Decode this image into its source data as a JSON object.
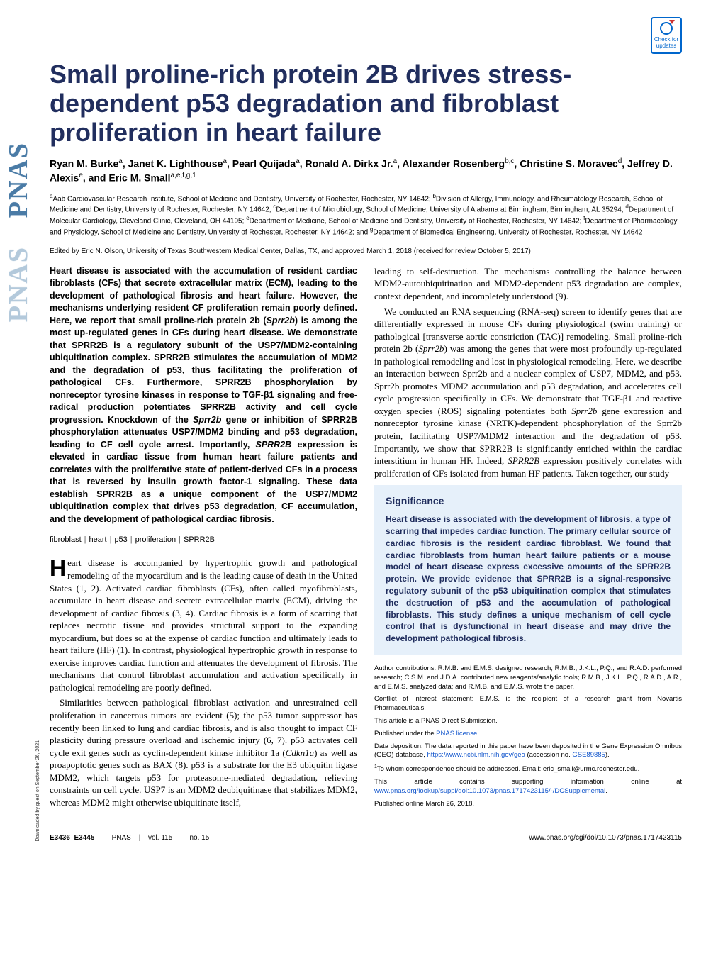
{
  "updates_badge": "Check for updates",
  "title": "Small proline-rich protein 2B drives stress-dependent p53 degradation and fibroblast proliferation in heart failure",
  "authors_html": "Ryan M. Burke<sup>a</sup>, Janet K. Lighthouse<sup>a</sup>, Pearl Quijada<sup>a</sup>, Ronald A. Dirkx Jr.<sup>a</sup>, Alexander Rosenberg<sup>b,c</sup>, Christine S. Moravec<sup>d</sup>, Jeffrey D. Alexis<sup>e</sup>, and Eric M. Small<sup>a,e,f,g,1</sup>",
  "affiliations_html": "<sup>a</sup>Aab Cardiovascular Research Institute, School of Medicine and Dentistry, University of Rochester, Rochester, NY 14642; <sup>b</sup>Division of Allergy, Immunology, and Rheumatology Research, School of Medicine and Dentistry, University of Rochester, Rochester, NY 14642; <sup>c</sup>Department of Microbiology, School of Medicine, University of Alabama at Birmingham, Birmingham, AL 35294; <sup>d</sup>Department of Molecular Cardiology, Cleveland Clinic, Cleveland, OH 44195; <sup>e</sup>Department of Medicine, School of Medicine and Dentistry, University of Rochester, Rochester, NY 14642; <sup>f</sup>Department of Pharmacology and Physiology, School of Medicine and Dentistry, University of Rochester, Rochester, NY 14642; and <sup>g</sup>Department of Biomedical Engineering, University of Rochester, Rochester, NY 14642",
  "edited": "Edited by Eric N. Olson, University of Texas Southwestern Medical Center, Dallas, TX, and approved March 1, 2018 (received for review October 5, 2017)",
  "abstract_html": "Heart disease is associated with the accumulation of resident cardiac fibroblasts (CFs) that secrete extracellular matrix (ECM), leading to the development of pathological fibrosis and heart failure. However, the mechanisms underlying resident CF proliferation remain poorly defined. Here, we report that small proline-rich protein 2b (<em>Sprr2b</em>) is among the most up-regulated genes in CFs during heart disease. We demonstrate that SPRR2B is a regulatory subunit of the USP7/MDM2-containing ubiquitination complex. SPRR2B stimulates the accumulation of MDM2 and the degradation of p53, thus facilitating the proliferation of pathological CFs. Furthermore, SPRR2B phosphorylation by nonreceptor tyrosine kinases in response to TGF-β1 signaling and free-radical production potentiates SPRR2B activity and cell cycle progression. Knockdown of the <em>Sprr2b</em> gene or inhibition of SPRR2B phosphorylation attenuates USP7/MDM2 binding and p53 degradation, leading to CF cell cycle arrest. Importantly, <em>SPRR2B</em> expression is elevated in cardiac tissue from human heart failure patients and correlates with the proliferative state of patient-derived CFs in a process that is reversed by insulin growth factor-1 signaling. These data establish SPRR2B as a unique component of the USP7/MDM2 ubiquitination complex that drives p53 degradation, CF accumulation, and the development of pathological cardiac fibrosis.",
  "keywords": [
    "fibroblast",
    "heart",
    "p53",
    "proliferation",
    "SPRR2B"
  ],
  "body_col1_p1_html": "eart disease is accompanied by hypertrophic growth and pathological remodeling of the myocardium and is the leading cause of death in the United States (1, 2). Activated cardiac fibroblasts (CFs), often called myofibroblasts, accumulate in heart disease and secrete extracellular matrix (ECM), driving the development of cardiac fibrosis (3, 4). Cardiac fibrosis is a form of scarring that replaces necrotic tissue and provides structural support to the expanding myocardium, but does so at the expense of cardiac function and ultimately leads to heart failure (HF) (1). In contrast, physiological hypertrophic growth in response to exercise improves cardiac function and attenuates the development of fibrosis. The mechanisms that control fibroblast accumulation and activation specifically in pathological remodeling are poorly defined.",
  "body_col1_p2_html": "Similarities between pathological fibroblast activation and unrestrained cell proliferation in cancerous tumors are evident (5); the p53 tumor suppressor has recently been linked to lung and cardiac fibrosis, and is also thought to impact CF plasticity during pressure overload and ischemic injury (6, 7). p53 activates cell cycle exit genes such as cyclin-dependent kinase inhibitor 1a (<em>Cdkn1a</em>) as well as proapoptotic genes such as BAX (8). p53 is a substrate for the E3 ubiquitin ligase MDM2, which targets p53 for proteasome-mediated degradation, relieving constraints on cell cycle. USP7 is an MDM2 deubiquitinase that stabilizes MDM2, whereas MDM2 might otherwise ubiquitinate itself,",
  "body_col2_p1_html": "leading to self-destruction. The mechanisms controlling the balance between MDM2-autoubiquitination and MDM2-dependent p53 degradation are complex, context dependent, and incompletely understood (9).",
  "body_col2_p2_html": "We conducted an RNA sequencing (RNA-seq) screen to identify genes that are differentially expressed in mouse CFs during physiological (swim training) or pathological [transverse aortic constriction (TAC)] remodeling. Small proline-rich protein 2b (<em>Sprr2b</em>) was among the genes that were most profoundly up-regulated in pathological remodeling and lost in physiological remodeling. Here, we describe an interaction between Sprr2b and a nuclear complex of USP7, MDM2, and p53. Sprr2b promotes MDM2 accumulation and p53 degradation, and accelerates cell cycle progression specifically in CFs. We demonstrate that TGF-β1 and reactive oxygen species (ROS) signaling potentiates both <em>Sprr2b</em> gene expression and nonreceptor tyrosine kinase (NRTK)-dependent phosphorylation of the Sprr2b protein, facilitating USP7/MDM2 interaction and the degradation of p53. Importantly, we show that SPRR2B is significantly enriched within the cardiac interstitium in human HF. Indeed, <em>SPRR2B</em> expression positively correlates with proliferation of CFs isolated from human HF patients. Taken together, our study",
  "significance": {
    "title": "Significance",
    "text": "Heart disease is associated with the development of fibrosis, a type of scarring that impedes cardiac function. The primary cellular source of cardiac fibrosis is the resident cardiac fibroblast. We found that cardiac fibroblasts from human heart failure patients or a mouse model of heart disease express excessive amounts of the SPRR2B protein. We provide evidence that SPRR2B is a signal-responsive regulatory subunit of the p53 ubiquitination complex that stimulates the destruction of p53 and the accumulation of pathological fibroblasts. This study defines a unique mechanism of cell cycle control that is dysfunctional in heart disease and may drive the development pathological fibrosis."
  },
  "footnotes": {
    "author_contrib": "Author contributions: R.M.B. and E.M.S. designed research; R.M.B., J.K.L., P.Q., and R.A.D. performed research; C.S.M. and J.D.A. contributed new reagents/analytic tools; R.M.B., J.K.L., P.Q., R.A.D., A.R., and E.M.S. analyzed data; and R.M.B. and E.M.S. wrote the paper.",
    "conflict": "Conflict of interest statement: E.M.S. is the recipient of a research grant from Novartis Pharmaceuticals.",
    "direct": "This article is a PNAS Direct Submission.",
    "published_under": "Published under the ",
    "license_link": "PNAS license",
    "data_dep_pre": "Data deposition: The data reported in this paper have been deposited in the Gene Expression Omnibus (GEO) database, ",
    "data_dep_url": "https://www.ncbi.nlm.nih.gov/geo",
    "data_dep_post": " (accession no. ",
    "accession": "GSE89885",
    "data_dep_close": ").",
    "correspondence": "To whom correspondence should be addressed. Email: eric_small@urmc.rochester.edu.",
    "supporting_pre": "This article contains supporting information online at ",
    "supporting_url": "www.pnas.org/lookup/suppl/doi:10.1073/pnas.1717423115/-/DCSupplemental",
    "supporting_post": ".",
    "pub_online": "Published online March 26, 2018."
  },
  "footer": {
    "pages": "E3436–E3445",
    "journal": "PNAS",
    "vol": "vol. 115",
    "no": "no. 15",
    "url": "www.pnas.org/cgi/doi/10.1073/pnas.1717423115"
  },
  "download_note": "Downloaded by guest on September 26, 2021",
  "side_logo": "PNAS",
  "colors": {
    "title_color": "#212e5e",
    "significance_bg": "#e6f0fa",
    "link_color": "#1155cc",
    "pnas_blue": "#4a7ba6",
    "pnas_faded": "#b3c9db"
  }
}
